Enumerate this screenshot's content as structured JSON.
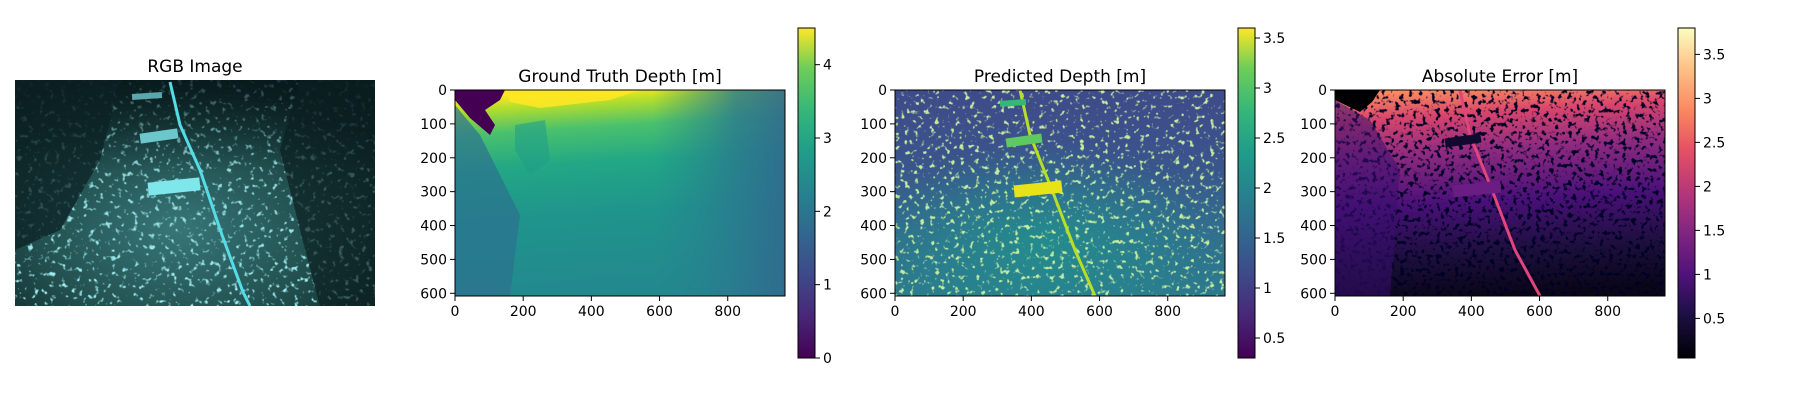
{
  "chart_data": [
    {
      "type": "image",
      "title": "RGB Image",
      "content": "underwater scene with seabed, cable and markers",
      "colors": {
        "dark": "#0b1c1d",
        "mid": "#1f4d4f",
        "bright": "#4fd6df"
      }
    },
    {
      "type": "heatmap",
      "title": "Ground Truth Depth [m]",
      "colormap": "viridis",
      "x_ticks": [
        0,
        200,
        400,
        600,
        800
      ],
      "y_ticks": [
        0,
        100,
        200,
        300,
        400,
        500,
        600
      ],
      "xlim": [
        0,
        968
      ],
      "ylim": [
        608,
        0
      ],
      "colorbar": {
        "ticks": [
          0,
          1,
          2,
          3,
          4
        ],
        "range": [
          0,
          4.5
        ]
      }
    },
    {
      "type": "heatmap",
      "title": "Predicted Depth [m]",
      "colormap": "viridis",
      "x_ticks": [
        0,
        200,
        400,
        600,
        800
      ],
      "y_ticks": [
        0,
        100,
        200,
        300,
        400,
        500,
        600
      ],
      "xlim": [
        0,
        968
      ],
      "ylim": [
        608,
        0
      ],
      "colorbar": {
        "ticks": [
          0.5,
          1.0,
          1.5,
          2.0,
          2.5,
          3.0,
          3.5
        ],
        "range": [
          0.3,
          3.6
        ]
      }
    },
    {
      "type": "heatmap",
      "title": "Absolute Error [m]",
      "colormap": "magma",
      "x_ticks": [
        0,
        200,
        400,
        600,
        800
      ],
      "y_ticks": [
        0,
        100,
        200,
        300,
        400,
        500,
        600
      ],
      "xlim": [
        0,
        968
      ],
      "ylim": [
        608,
        0
      ],
      "colorbar": {
        "ticks": [
          0.5,
          1.0,
          1.5,
          2.0,
          2.5,
          3.0,
          3.5
        ],
        "range": [
          0.05,
          3.8
        ]
      }
    }
  ]
}
